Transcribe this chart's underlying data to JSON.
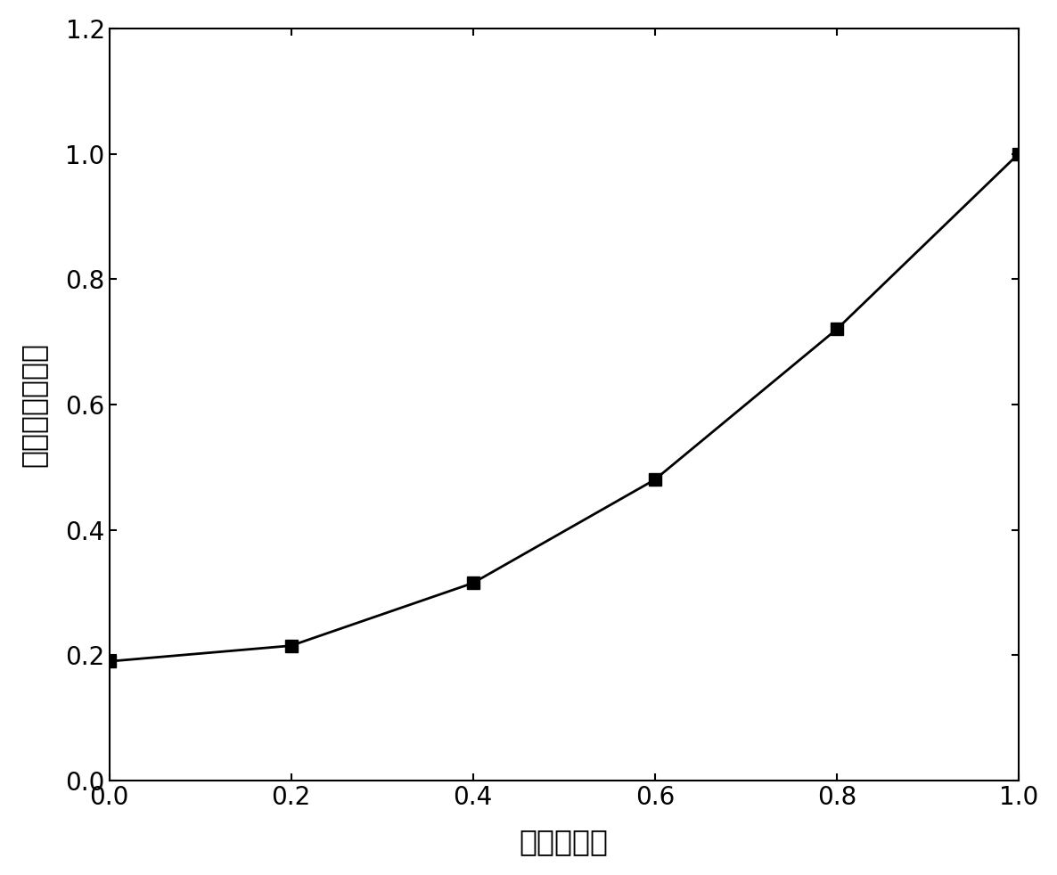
{
  "x": [
    0.0,
    0.2,
    0.4,
    0.6,
    0.8,
    1.0
  ],
  "y": [
    0.19,
    0.215,
    0.315,
    0.48,
    0.72,
    1.0
  ],
  "xlabel": "无量纲距离",
  "ylabel": "实测无量纲浓度",
  "xlim": [
    0.0,
    1.0
  ],
  "ylim": [
    0.0,
    1.2
  ],
  "xticks": [
    0.0,
    0.2,
    0.4,
    0.6,
    0.8,
    1.0
  ],
  "yticks": [
    0.0,
    0.2,
    0.4,
    0.6,
    0.8,
    1.0,
    1.2
  ],
  "line_color": "#000000",
  "marker": "s",
  "marker_color": "#000000",
  "marker_size": 10,
  "line_width": 2.0,
  "background_color": "#ffffff",
  "xlabel_fontsize": 24,
  "ylabel_fontsize": 24,
  "tick_fontsize": 20,
  "spine_linewidth": 1.5
}
